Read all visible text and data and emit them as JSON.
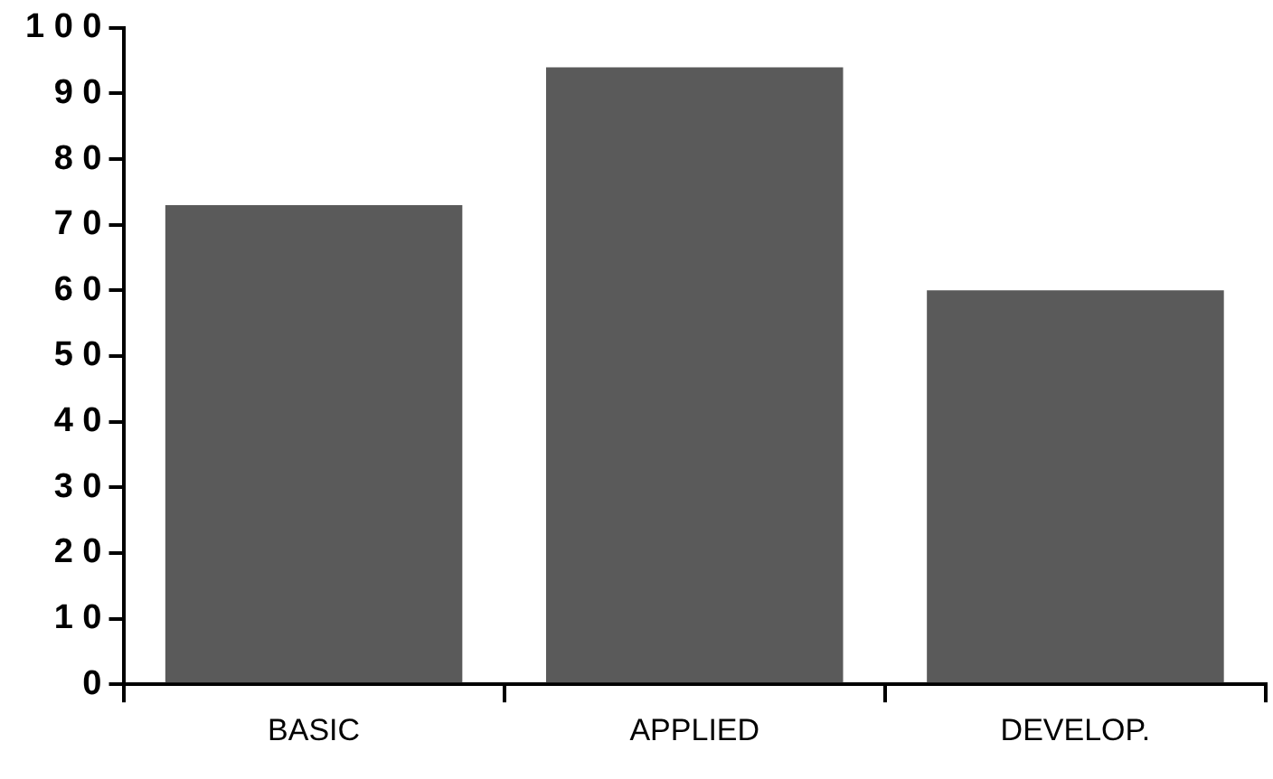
{
  "chart_data": {
    "type": "bar",
    "categories": [
      "BASIC",
      "APPLIED",
      "DEVELOP."
    ],
    "values": [
      73,
      94,
      60
    ],
    "color": "#5a5a5a",
    "ylim": [
      0,
      100
    ],
    "yticks": [
      0,
      10,
      20,
      30,
      40,
      50,
      60,
      70,
      80,
      90,
      100
    ],
    "grid": false
  }
}
